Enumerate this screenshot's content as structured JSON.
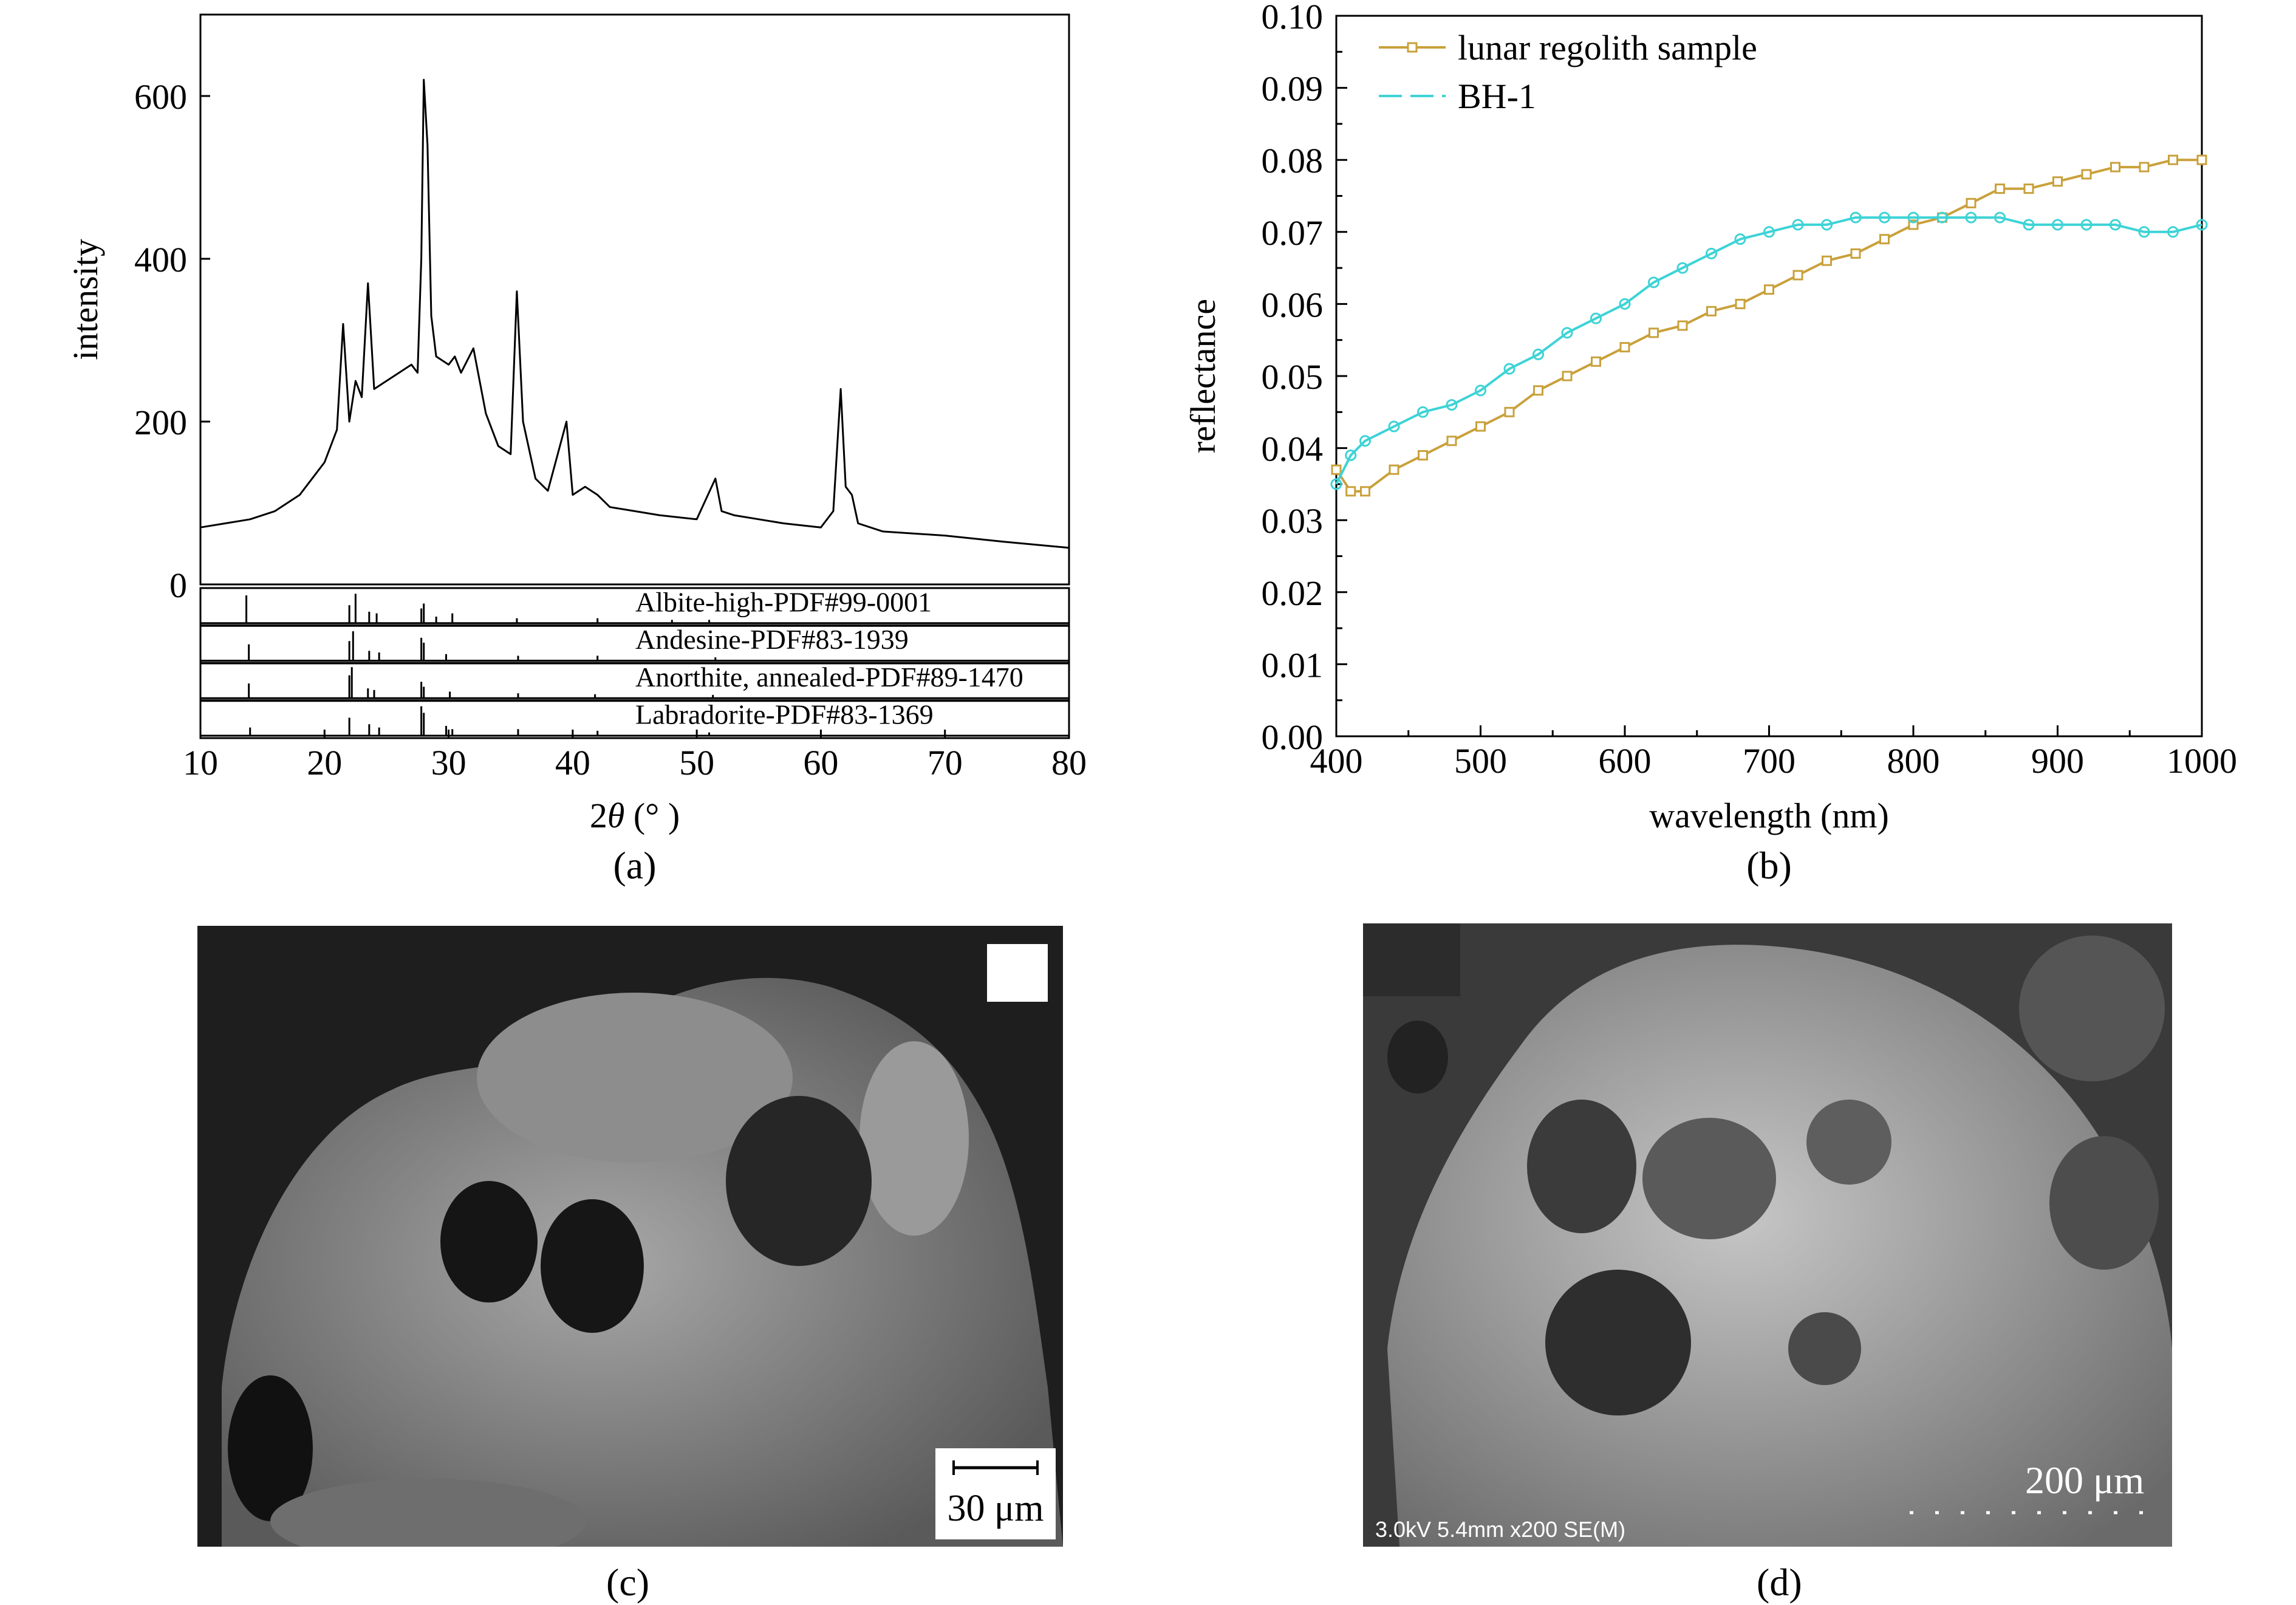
{
  "chart_data": [
    {
      "id": "a",
      "type": "line",
      "panel_label": "(a)",
      "title": "",
      "xlabel_prefix": "2",
      "xlabel_symbol": "θ",
      "xlabel_suffix": " (° )",
      "ylabel": "intensity",
      "xlim": [
        10,
        80
      ],
      "ylim": [
        0,
        700
      ],
      "xticks": [
        10,
        20,
        30,
        40,
        50,
        60,
        70,
        80
      ],
      "yticks": [
        0,
        200,
        400,
        600
      ],
      "grid": false,
      "series": [
        {
          "color": "#000000",
          "x": [
            10,
            12,
            14,
            16,
            18,
            20,
            21,
            21.5,
            22,
            22.5,
            23,
            23.5,
            24,
            25,
            26,
            27,
            27.5,
            27.8,
            28,
            28.3,
            28.6,
            29,
            30,
            30.5,
            31,
            32,
            33,
            34,
            35,
            35.5,
            36,
            37,
            38,
            39.5,
            40,
            41,
            42,
            43,
            45,
            47,
            50,
            51.5,
            52,
            53,
            55,
            57,
            60,
            61,
            61.6,
            62,
            62.5,
            63,
            65,
            70,
            75,
            80
          ],
          "y": [
            70,
            75,
            80,
            90,
            110,
            150,
            190,
            320,
            200,
            250,
            230,
            370,
            240,
            250,
            260,
            270,
            260,
            400,
            620,
            540,
            330,
            280,
            270,
            280,
            260,
            290,
            210,
            170,
            160,
            360,
            200,
            130,
            115,
            200,
            110,
            120,
            110,
            95,
            90,
            85,
            80,
            130,
            90,
            85,
            80,
            75,
            70,
            90,
            240,
            120,
            110,
            75,
            65,
            60,
            52,
            45
          ]
        }
      ],
      "reference_patterns": [
        {
          "label": "Albite-high-PDF#99-0001",
          "peaks": [
            [
              13.7,
              0.85
            ],
            [
              22.0,
              0.55
            ],
            [
              22.5,
              0.9
            ],
            [
              23.6,
              0.35
            ],
            [
              24.2,
              0.3
            ],
            [
              27.8,
              0.45
            ],
            [
              28.0,
              0.6
            ],
            [
              29.0,
              0.2
            ],
            [
              30.3,
              0.3
            ],
            [
              35.5,
              0.15
            ],
            [
              42.0,
              0.15
            ],
            [
              48.0,
              0.1
            ],
            [
              51.0,
              0.1
            ]
          ]
        },
        {
          "label": "Andesine-PDF#83-1939",
          "peaks": [
            [
              13.9,
              0.5
            ],
            [
              22.0,
              0.6
            ],
            [
              22.3,
              0.9
            ],
            [
              23.6,
              0.3
            ],
            [
              24.4,
              0.25
            ],
            [
              27.8,
              0.7
            ],
            [
              28.0,
              0.55
            ],
            [
              29.8,
              0.2
            ],
            [
              35.6,
              0.15
            ],
            [
              42.0,
              0.15
            ],
            [
              51.5,
              0.1
            ]
          ]
        },
        {
          "label": "Anorthite, annealed-PDF#89-1470",
          "peaks": [
            [
              13.9,
              0.45
            ],
            [
              22.0,
              0.7
            ],
            [
              22.2,
              0.95
            ],
            [
              23.5,
              0.3
            ],
            [
              24.0,
              0.25
            ],
            [
              27.8,
              0.5
            ],
            [
              28.0,
              0.35
            ],
            [
              30.1,
              0.2
            ],
            [
              35.6,
              0.15
            ],
            [
              41.8,
              0.12
            ],
            [
              51.3,
              0.1
            ]
          ]
        },
        {
          "label": "Labradorite-PDF#83-1369",
          "peaks": [
            [
              14.0,
              0.25
            ],
            [
              22.0,
              0.55
            ],
            [
              23.6,
              0.35
            ],
            [
              24.4,
              0.25
            ],
            [
              27.8,
              0.9
            ],
            [
              28.0,
              0.7
            ],
            [
              29.8,
              0.3
            ],
            [
              30.3,
              0.2
            ],
            [
              35.6,
              0.2
            ],
            [
              42.0,
              0.15
            ],
            [
              51.0,
              0.1
            ]
          ]
        }
      ]
    },
    {
      "id": "b",
      "type": "line",
      "panel_label": "(b)",
      "title": "",
      "xlabel": "wavelength (nm)",
      "ylabel": "reflectance",
      "xlim": [
        400,
        1000
      ],
      "ylim": [
        0,
        0.1
      ],
      "xticks": [
        400,
        500,
        600,
        700,
        800,
        900,
        1000
      ],
      "yticks": [
        0.0,
        0.01,
        0.02,
        0.03,
        0.04,
        0.05,
        0.06,
        0.07,
        0.08,
        0.09,
        0.1
      ],
      "ytick_labels": [
        "0.00",
        "0.01",
        "0.02",
        "0.03",
        "0.04",
        "0.05",
        "0.06",
        "0.07",
        "0.08",
        "0.09",
        "0.10"
      ],
      "xtick_labels": [
        "400",
        "500",
        "600",
        "700",
        "800",
        "900",
        "1000"
      ],
      "grid": false,
      "legend_position": "top-left",
      "series": [
        {
          "name": "lunar regolith sample",
          "color": "#C9A13B",
          "marker": "square",
          "x": [
            400,
            410,
            420,
            440,
            460,
            480,
            500,
            520,
            540,
            560,
            580,
            600,
            620,
            640,
            660,
            680,
            700,
            720,
            740,
            760,
            780,
            800,
            820,
            840,
            860,
            880,
            900,
            920,
            940,
            960,
            980,
            1000
          ],
          "y": [
            0.037,
            0.034,
            0.034,
            0.037,
            0.039,
            0.041,
            0.043,
            0.045,
            0.048,
            0.05,
            0.052,
            0.054,
            0.056,
            0.057,
            0.059,
            0.06,
            0.062,
            0.064,
            0.066,
            0.067,
            0.069,
            0.071,
            0.072,
            0.074,
            0.076,
            0.076,
            0.077,
            0.078,
            0.079,
            0.079,
            0.08,
            0.08
          ]
        },
        {
          "name": "BH-1",
          "color": "#3ED3D6",
          "marker": "circle",
          "x": [
            400,
            410,
            420,
            440,
            460,
            480,
            500,
            520,
            540,
            560,
            580,
            600,
            620,
            640,
            660,
            680,
            700,
            720,
            740,
            760,
            780,
            800,
            820,
            840,
            860,
            880,
            900,
            920,
            940,
            960,
            980,
            1000
          ],
          "y": [
            0.035,
            0.039,
            0.041,
            0.043,
            0.045,
            0.046,
            0.048,
            0.051,
            0.053,
            0.056,
            0.058,
            0.06,
            0.063,
            0.065,
            0.067,
            0.069,
            0.07,
            0.071,
            0.071,
            0.072,
            0.072,
            0.072,
            0.072,
            0.072,
            0.072,
            0.071,
            0.071,
            0.071,
            0.071,
            0.07,
            0.07,
            0.071
          ]
        }
      ]
    }
  ],
  "images": {
    "c": {
      "panel_label": "(c)",
      "scale_bar": "30 μm"
    },
    "d": {
      "panel_label": "(d)",
      "scale_bar": "200 μm",
      "info": "3.0kV 5.4mm x200 SE(M)"
    }
  }
}
